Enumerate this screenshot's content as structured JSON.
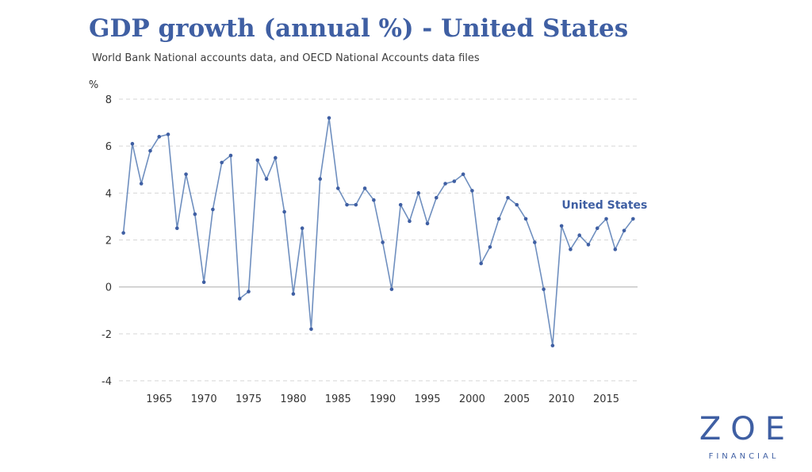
{
  "chart_data": {
    "type": "line",
    "title": "GDP growth (annual %) - United States",
    "subtitle": "World Bank National accounts data, and OECD National Accounts data files",
    "ylabel": "%",
    "xlabel": "",
    "ylim": [
      -4,
      8
    ],
    "yticks": [
      -4,
      -2,
      0,
      2,
      4,
      6,
      8
    ],
    "xlim": [
      1960.5,
      2018.5
    ],
    "xticks": [
      1965,
      1970,
      1975,
      1980,
      1985,
      1990,
      1995,
      2000,
      2005,
      2010,
      2015
    ],
    "grid": true,
    "series": [
      {
        "name": "United States",
        "color": "#3f5fa3",
        "line_color": "#6f8fbf",
        "x": [
          1961,
          1962,
          1963,
          1964,
          1965,
          1966,
          1967,
          1968,
          1969,
          1970,
          1971,
          1972,
          1973,
          1974,
          1975,
          1976,
          1977,
          1978,
          1979,
          1980,
          1981,
          1982,
          1983,
          1984,
          1985,
          1986,
          1987,
          1988,
          1989,
          1990,
          1991,
          1992,
          1993,
          1994,
          1995,
          1996,
          1997,
          1998,
          1999,
          2000,
          2001,
          2002,
          2003,
          2004,
          2005,
          2006,
          2007,
          2008,
          2009,
          2010,
          2011,
          2012,
          2013,
          2014,
          2015,
          2016,
          2017,
          2018
        ],
        "values": [
          2.3,
          6.1,
          4.4,
          5.8,
          6.4,
          6.5,
          2.5,
          4.8,
          3.1,
          0.2,
          3.3,
          5.3,
          5.6,
          -0.5,
          -0.2,
          5.4,
          4.6,
          5.5,
          3.2,
          -0.3,
          2.5,
          -1.8,
          4.6,
          7.2,
          4.2,
          3.5,
          3.5,
          4.2,
          3.7,
          1.9,
          -0.1,
          3.5,
          2.8,
          4.0,
          2.7,
          3.8,
          4.4,
          4.5,
          4.8,
          4.1,
          1.0,
          1.7,
          2.9,
          3.8,
          3.5,
          2.9,
          1.9,
          -0.1,
          -2.5,
          2.6,
          1.6,
          2.2,
          1.8,
          2.5,
          2.9,
          1.6,
          2.4,
          2.9
        ]
      }
    ]
  },
  "brand": {
    "name": "ZOE",
    "tagline": "FINANCIAL"
  }
}
